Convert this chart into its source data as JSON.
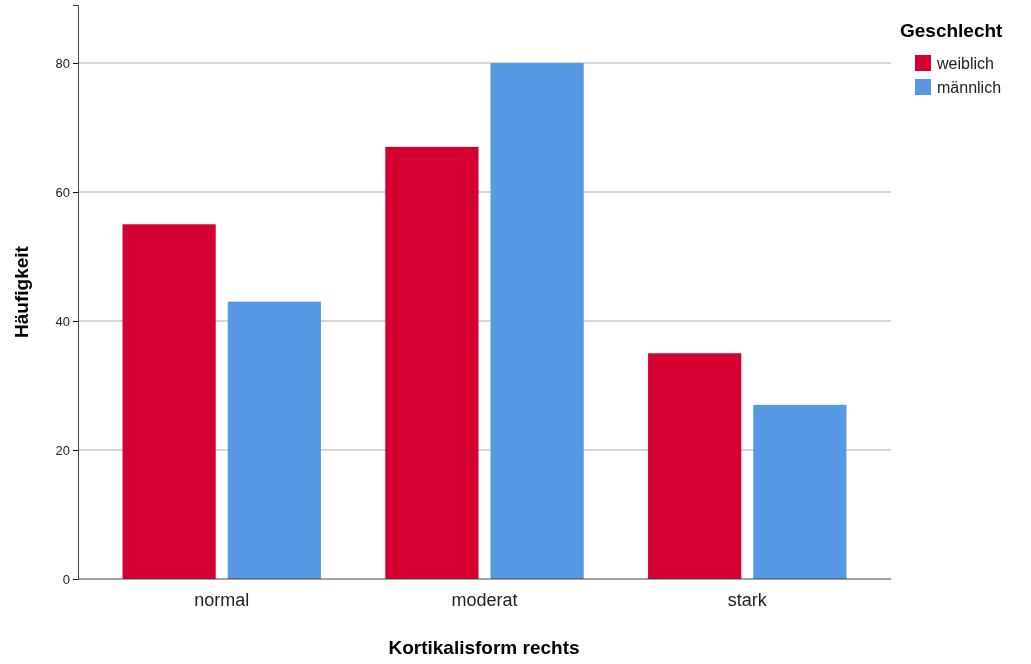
{
  "chart_data": {
    "type": "bar",
    "xlabel": "Kortikalisform rechts",
    "ylabel": "Häufigkeit",
    "legend_title": "Geschlecht",
    "categories": [
      "normal",
      "moderat",
      "stark"
    ],
    "series": [
      {
        "name": "weiblich",
        "color": "#d30031",
        "values": [
          55,
          67,
          35
        ]
      },
      {
        "name": "männlich",
        "color": "#5598e4",
        "values": [
          43,
          80,
          27
        ]
      }
    ],
    "ylim": [
      0,
      89
    ],
    "yticks": [
      0,
      20,
      40,
      60,
      80
    ],
    "grid": "y",
    "legend": "top right"
  }
}
